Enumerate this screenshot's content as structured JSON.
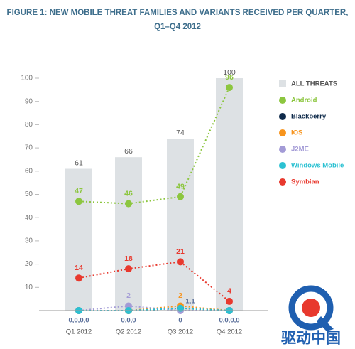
{
  "chart_data": {
    "type": "combo",
    "title": [
      "FIGURE 1: NEW MOBILE THREAT FAMILIES AND VARIANTS RECEIVED PER QUARTER,",
      "Q1–Q4 2012"
    ],
    "categories": [
      "Q1 2012",
      "Q2 2012",
      "Q3 2012",
      "Q4 2012"
    ],
    "ylim": [
      0,
      100
    ],
    "yticks": [
      10,
      20,
      30,
      40,
      50,
      60,
      70,
      80,
      90,
      100
    ],
    "series": [
      {
        "name": "ALL THREATS",
        "type": "bar",
        "color": "#dde1e4",
        "values": [
          61,
          66,
          74,
          100
        ]
      },
      {
        "name": "Android",
        "type": "line",
        "color": "#8cc63f",
        "values": [
          47,
          46,
          49,
          96
        ]
      },
      {
        "name": "Blackberry",
        "type": "line",
        "color": "#0e2a4a",
        "values": [
          0,
          0,
          1,
          0
        ]
      },
      {
        "name": "iOS",
        "type": "line",
        "color": "#f7941d",
        "values": [
          0,
          0,
          2,
          0
        ]
      },
      {
        "name": "J2ME",
        "type": "line",
        "color": "#a39bd6",
        "values": [
          0,
          2,
          0,
          0
        ]
      },
      {
        "name": "Windows Mobile",
        "type": "line",
        "color": "#2bc1d2",
        "values": [
          0,
          0,
          1,
          0
        ]
      },
      {
        "name": "Symbian",
        "type": "line",
        "color": "#e8392e",
        "values": [
          14,
          18,
          21,
          4
        ]
      }
    ],
    "annotations": [
      "0,0,0,0",
      "0,0,0",
      "0",
      "0,0,0,0",
      "1,1"
    ],
    "watermark": "驱动中国"
  }
}
